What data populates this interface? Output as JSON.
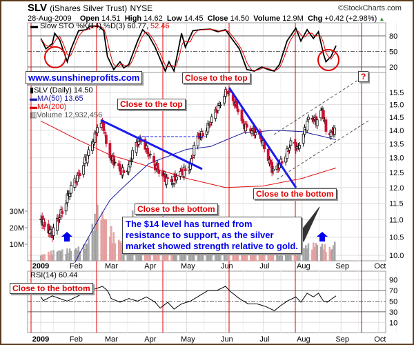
{
  "header": {
    "symbol": "SLV",
    "name": "(iShares Silver Trust)",
    "exchange": "NYSE",
    "copyright": "©StockCharts.com",
    "date": "28-Aug-2009",
    "open_label": "Open",
    "open": "14.51",
    "high_label": "High",
    "high": "14.62",
    "low_label": "Low",
    "low": "14.45",
    "close_label": "Close",
    "close": "14.50",
    "volume_label": "Volume",
    "volume": "12.9M",
    "chg_label": "Chg",
    "chg": "+0.42 (+2.98%)"
  },
  "colors": {
    "up": "#000000",
    "down": "#cc1133",
    "ma50": "#1a1aa0",
    "ma200": "#e01010",
    "annotation_red": "#e00000",
    "annotation_blue": "#0000ee",
    "vol_up": "#b0b0b0",
    "vol_down": "#e8a8a8"
  },
  "legend": {
    "sto": "Slow STO %K(14) %D(3) 60.77,",
    "sto_d": "52.46",
    "price": "SLV (Daily) 14.50",
    "ma50": "MA(50) 13.65",
    "ma200": "MA(200)",
    "volume": "Volume 12,932,456",
    "rsi": "RSI(14) 60.44"
  },
  "annotations": {
    "website": "www.sunshineprofits.com",
    "top1": "Close to the top",
    "top2": "Close to the top",
    "bottom1": "Close to the bottom",
    "bottom2": "Close to the bottom",
    "bottom3": "Close to the bottom",
    "question": "?",
    "comment": "The $14 level has turned from resistance to support, as the silver market showed strength relative to gold."
  },
  "chart_data": {
    "type": "candlestick",
    "title": "SLV (iShares Silver Trust) NYSE",
    "x_ticks": [
      "2009",
      "Feb",
      "Mar",
      "Apr",
      "May",
      "Jun",
      "Jul",
      "Aug",
      "Sep",
      "Oct"
    ],
    "price_ticks": [
      "15.5",
      "15.0",
      "14.5",
      "14.0",
      "13.5",
      "13.0",
      "12.5",
      "12.0",
      "11.5",
      "11.0",
      "10.5",
      "10.0"
    ],
    "volume_ticks": [
      "30M",
      "20M",
      "10M"
    ],
    "sto_ticks": [
      "80",
      "50",
      "20"
    ],
    "rsi_ticks": [
      "90",
      "70",
      "50",
      "30",
      "10"
    ],
    "price_close": [
      [
        "01-05",
        11.0
      ],
      [
        "01-09",
        10.8
      ],
      [
        "01-14",
        10.6
      ],
      [
        "01-20",
        11.1
      ],
      [
        "01-27",
        11.8
      ],
      [
        "02-05",
        12.5
      ],
      [
        "02-12",
        13.2
      ],
      [
        "02-18",
        13.9
      ],
      [
        "02-20",
        14.4
      ],
      [
        "02-24",
        14.1
      ],
      [
        "02-27",
        13.2
      ],
      [
        "03-05",
        12.8
      ],
      [
        "03-10",
        12.5
      ],
      [
        "03-16",
        12.7
      ],
      [
        "03-20",
        13.3
      ],
      [
        "03-26",
        13.7
      ],
      [
        "04-01",
        13.1
      ],
      [
        "04-06",
        12.7
      ],
      [
        "04-14",
        12.3
      ],
      [
        "04-20",
        12.2
      ],
      [
        "04-24",
        12.4
      ],
      [
        "04-30",
        12.6
      ],
      [
        "05-05",
        12.9
      ],
      [
        "05-08",
        13.6
      ],
      [
        "05-14",
        13.9
      ],
      [
        "05-20",
        14.3
      ],
      [
        "05-27",
        15.0
      ],
      [
        "06-02",
        15.6
      ],
      [
        "06-05",
        15.3
      ],
      [
        "06-10",
        14.9
      ],
      [
        "06-15",
        14.2
      ],
      [
        "06-22",
        14.0
      ],
      [
        "06-29",
        13.7
      ],
      [
        "07-03",
        13.3
      ],
      [
        "07-08",
        12.6
      ],
      [
        "07-10",
        12.4
      ],
      [
        "07-14",
        12.8
      ],
      [
        "07-20",
        13.2
      ],
      [
        "07-24",
        13.6
      ],
      [
        "07-28",
        13.3
      ],
      [
        "08-03",
        14.0
      ],
      [
        "08-07",
        14.6
      ],
      [
        "08-12",
        14.3
      ],
      [
        "08-17",
        14.8
      ],
      [
        "08-20",
        14.0
      ],
      [
        "08-24",
        13.9
      ],
      [
        "08-27",
        14.0
      ],
      [
        "08-28",
        14.5
      ]
    ],
    "ma50": [
      [
        "02-01",
        9.8
      ],
      [
        "03-01",
        11.6
      ],
      [
        "04-01",
        12.8
      ],
      [
        "05-01",
        13.3
      ],
      [
        "05-20",
        13.4
      ],
      [
        "06-15",
        13.9
      ],
      [
        "07-10",
        14.0
      ],
      [
        "08-01",
        13.95
      ],
      [
        "08-15",
        13.8
      ],
      [
        "08-28",
        13.65
      ]
    ],
    "ma200": [
      [
        "01-05",
        14.35
      ],
      [
        "02-01",
        13.7
      ],
      [
        "03-01",
        13.1
      ],
      [
        "04-01",
        12.7
      ],
      [
        "05-01",
        12.3
      ],
      [
        "06-01",
        12.0
      ],
      [
        "07-01",
        12.05
      ],
      [
        "08-01",
        12.3
      ],
      [
        "08-28",
        12.65
      ]
    ],
    "volume_m": [
      [
        "01-05",
        3
      ],
      [
        "01-15",
        5
      ],
      [
        "02-01",
        6
      ],
      [
        "02-10",
        8
      ],
      [
        "02-20",
        28
      ],
      [
        "02-27",
        20
      ],
      [
        "03-05",
        12
      ],
      [
        "03-15",
        8
      ],
      [
        "03-20",
        29
      ],
      [
        "03-25",
        9
      ],
      [
        "04-01",
        5
      ],
      [
        "04-15",
        4
      ],
      [
        "04-30",
        5
      ],
      [
        "05-10",
        6
      ],
      [
        "05-25",
        5
      ],
      [
        "06-01",
        18
      ],
      [
        "06-05",
        14
      ],
      [
        "06-12",
        8
      ],
      [
        "06-25",
        4
      ],
      [
        "07-10",
        4
      ],
      [
        "07-25",
        3
      ],
      [
        "08-05",
        8
      ],
      [
        "08-14",
        9
      ],
      [
        "08-25",
        6
      ],
      [
        "08-28",
        13
      ]
    ],
    "sto_k": [
      [
        "01-05",
        75
      ],
      [
        "01-09",
        55
      ],
      [
        "01-14",
        65
      ],
      [
        "01-16",
        85
      ],
      [
        "01-20",
        72
      ],
      [
        "01-26",
        30
      ],
      [
        "01-29",
        55
      ],
      [
        "02-04",
        90
      ],
      [
        "02-10",
        92
      ],
      [
        "02-13",
        99
      ],
      [
        "02-20",
        99
      ],
      [
        "02-24",
        90
      ],
      [
        "02-27",
        40
      ],
      [
        "03-04",
        15
      ],
      [
        "03-09",
        30
      ],
      [
        "03-12",
        18
      ],
      [
        "03-16",
        25
      ],
      [
        "03-23",
        70
      ],
      [
        "03-27",
        92
      ],
      [
        "04-01",
        80
      ],
      [
        "04-06",
        58
      ],
      [
        "04-14",
        12
      ],
      [
        "04-17",
        30
      ],
      [
        "04-21",
        12
      ],
      [
        "04-27",
        85
      ],
      [
        "04-30",
        58
      ],
      [
        "05-06",
        90
      ],
      [
        "05-12",
        92
      ],
      [
        "05-20",
        93
      ],
      [
        "05-26",
        88
      ],
      [
        "06-01",
        92
      ],
      [
        "06-05",
        78
      ],
      [
        "06-12",
        55
      ],
      [
        "06-18",
        15
      ],
      [
        "06-24",
        12
      ],
      [
        "06-30",
        20
      ],
      [
        "07-06",
        14
      ],
      [
        "07-10",
        12
      ],
      [
        "07-14",
        25
      ],
      [
        "07-20",
        70
      ],
      [
        "07-27",
        95
      ],
      [
        "07-31",
        70
      ],
      [
        "08-05",
        92
      ],
      [
        "08-10",
        75
      ],
      [
        "08-14",
        88
      ],
      [
        "08-18",
        45
      ],
      [
        "08-20",
        30
      ],
      [
        "08-24",
        40
      ],
      [
        "08-28",
        61
      ]
    ],
    "rsi": [
      [
        "01-05",
        58
      ],
      [
        "01-07",
        51
      ],
      [
        "01-14",
        60
      ],
      [
        "01-20",
        55
      ],
      [
        "01-26",
        50
      ],
      [
        "02-02",
        58
      ],
      [
        "02-09",
        66
      ],
      [
        "02-16",
        72
      ],
      [
        "02-23",
        78
      ],
      [
        "02-27",
        70
      ],
      [
        "03-02",
        55
      ],
      [
        "03-09",
        48
      ],
      [
        "03-16",
        55
      ],
      [
        "03-23",
        50
      ],
      [
        "03-30",
        58
      ],
      [
        "04-06",
        48
      ],
      [
        "04-10",
        37
      ],
      [
        "04-16",
        48
      ],
      [
        "04-21",
        35
      ],
      [
        "04-27",
        45
      ],
      [
        "05-04",
        50
      ],
      [
        "05-11",
        60
      ],
      [
        "05-18",
        70
      ],
      [
        "05-25",
        70
      ],
      [
        "06-01",
        78
      ],
      [
        "06-05",
        68
      ],
      [
        "06-12",
        55
      ],
      [
        "06-19",
        45
      ],
      [
        "06-26",
        45
      ],
      [
        "07-03",
        40
      ],
      [
        "07-10",
        32
      ],
      [
        "07-14",
        40
      ],
      [
        "07-20",
        50
      ],
      [
        "07-27",
        58
      ],
      [
        "07-31",
        48
      ],
      [
        "08-05",
        65
      ],
      [
        "08-10",
        58
      ],
      [
        "08-14",
        65
      ],
      [
        "08-18",
        50
      ],
      [
        "08-21",
        48
      ],
      [
        "08-25",
        55
      ],
      [
        "08-28",
        60
      ]
    ]
  }
}
